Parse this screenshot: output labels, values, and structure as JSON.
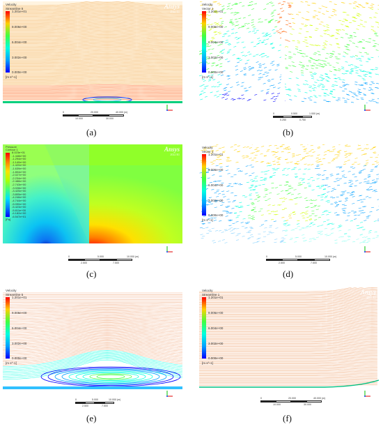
{
  "panels": [
    {
      "id": "a",
      "legend_title": [
        "Velocity",
        "Streamline 5"
      ],
      "legend_values": [
        "1.201e+01",
        "9.006e+00",
        "6.004e+00",
        "3.002e+00",
        "0.000e+00"
      ],
      "unit": "[m s^-1]",
      "logo": "Ansys",
      "logo_sub": "2022 R1",
      "scale_ticks": [
        "0",
        "20.000",
        "40.000 (m)",
        "10.000",
        "30.000"
      ],
      "caption": "(a)"
    },
    {
      "id": "b",
      "legend_title": [
        "Velocity",
        "Vector 1"
      ],
      "legend_values": [
        "1.201e+01",
        "9.006e+00",
        "6.004e+00",
        "3.002e+00",
        "0.000e+00"
      ],
      "unit": "[m s^-1]",
      "logo": "",
      "logo_sub": "",
      "scale_ticks": [
        "0",
        "0.500",
        "1.000 (m)",
        "0.250",
        "0.750"
      ],
      "caption": "(b)"
    },
    {
      "id": "c",
      "legend_title": [
        "Pressure",
        "Contour 1"
      ],
      "legend_values": [
        "8.023e+01",
        "-1.448e+00",
        "-1.294e+00",
        "-1.140e+00",
        "-1.420e+00",
        "-1.639e+00",
        "-1.804e+00",
        "-2.027e+00",
        "-2.234e+00",
        "-2.488e+00",
        "-2.743e+00",
        "-3.028e+00",
        "-3.425e+00",
        "-3.805e+00",
        "-4.246e+00",
        "-4.744e+00",
        "-5.090e+00",
        "-5.423e+00",
        "-5.811e+00",
        "-6.182e+00",
        "-6.547e+01"
      ],
      "unit": "[Pa]",
      "logo": "Ansys",
      "logo_sub": "2022 R1",
      "scale_ticks": [
        "0",
        "5.000",
        "10.000 (m)",
        "2.500",
        "7.500"
      ],
      "caption": "(c)"
    },
    {
      "id": "d",
      "legend_title": [
        "Velocity",
        "Vector 1"
      ],
      "legend_values": [
        "1.201e+01",
        "9.006e+00",
        "6.004e+00",
        "3.002e+00",
        "0.000e+00"
      ],
      "unit": "[m s^-1]",
      "logo": "",
      "logo_sub": "",
      "scale_ticks": [
        "0",
        "5.000",
        "10.000 (m)",
        "2.500",
        "7.500"
      ],
      "caption": "(d)"
    },
    {
      "id": "e",
      "legend_title": [
        "Velocity",
        "Streamline 5"
      ],
      "legend_values": [
        "1.201e+01",
        "9.006e+00",
        "6.004e+00",
        "3.002e+00",
        "0.000e+00"
      ],
      "unit": "[m s^-1]",
      "logo": "",
      "logo_sub": "",
      "scale_ticks": [
        "0",
        "5.000",
        "10.000 (m)",
        "2.500",
        "7.500"
      ],
      "caption": "(e)"
    },
    {
      "id": "f",
      "legend_title": [
        "Velocity",
        "Streamline 1"
      ],
      "legend_values": [
        "1.201e+01",
        "9.006e+00",
        "6.004e+00",
        "3.002e+00",
        "0.000e+00"
      ],
      "unit": "[m s^-1]",
      "logo": "Ansys",
      "logo_sub": "2022 R1",
      "scale_ticks": [
        "0",
        "20.000",
        "40.000 (m)",
        "10.000",
        "30.000"
      ],
      "caption": "(f)"
    }
  ],
  "colors": {
    "velocity_colormap": [
      "#0000ff",
      "#00a0ff",
      "#00ffe0",
      "#40ff40",
      "#d0ff00",
      "#ffd000",
      "#ff6000",
      "#ff0000"
    ],
    "streamline_base": "#f2b060",
    "pressure_positive": "#ff0000",
    "pressure_negative": "#00b0ff",
    "pressure_far": "#b0ff00"
  },
  "axis_labels": {
    "x": "X",
    "y": "Y",
    "z": "Z"
  }
}
